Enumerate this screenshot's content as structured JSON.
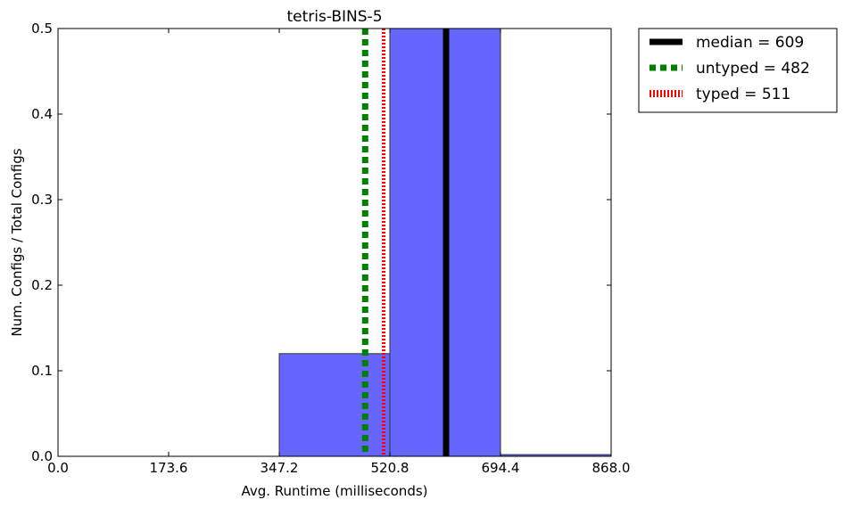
{
  "chart_data": {
    "type": "bar",
    "title": "tetris-BINS-5",
    "xlabel": "Avg. Runtime (milliseconds)",
    "ylabel": "Num. Configs / Total Configs",
    "xlim": [
      0.0,
      868.0
    ],
    "ylim": [
      0.0,
      0.5
    ],
    "xticks": [
      "0.0",
      "173.6",
      "347.2",
      "520.8",
      "694.4",
      "868.0"
    ],
    "yticks": [
      "0.0",
      "0.1",
      "0.2",
      "0.3",
      "0.4",
      "0.5"
    ],
    "bins": [
      {
        "start": 347.2,
        "end": 520.8,
        "value": 0.12
      },
      {
        "start": 520.8,
        "end": 694.4,
        "value": 0.5
      },
      {
        "start": 694.4,
        "end": 868.0,
        "value": 0.002
      }
    ],
    "bar_color": "#6666ff",
    "grid": false,
    "legend_position": "outside-top-right",
    "vlines": [
      {
        "label": "median = 609",
        "x": 609,
        "color": "#000000",
        "style": "solid"
      },
      {
        "label": "untyped = 482",
        "x": 482,
        "color": "#007f00",
        "style": "dashed"
      },
      {
        "label": "typed = 511",
        "x": 511,
        "color": "#ff0000",
        "style": "dotted"
      }
    ]
  }
}
